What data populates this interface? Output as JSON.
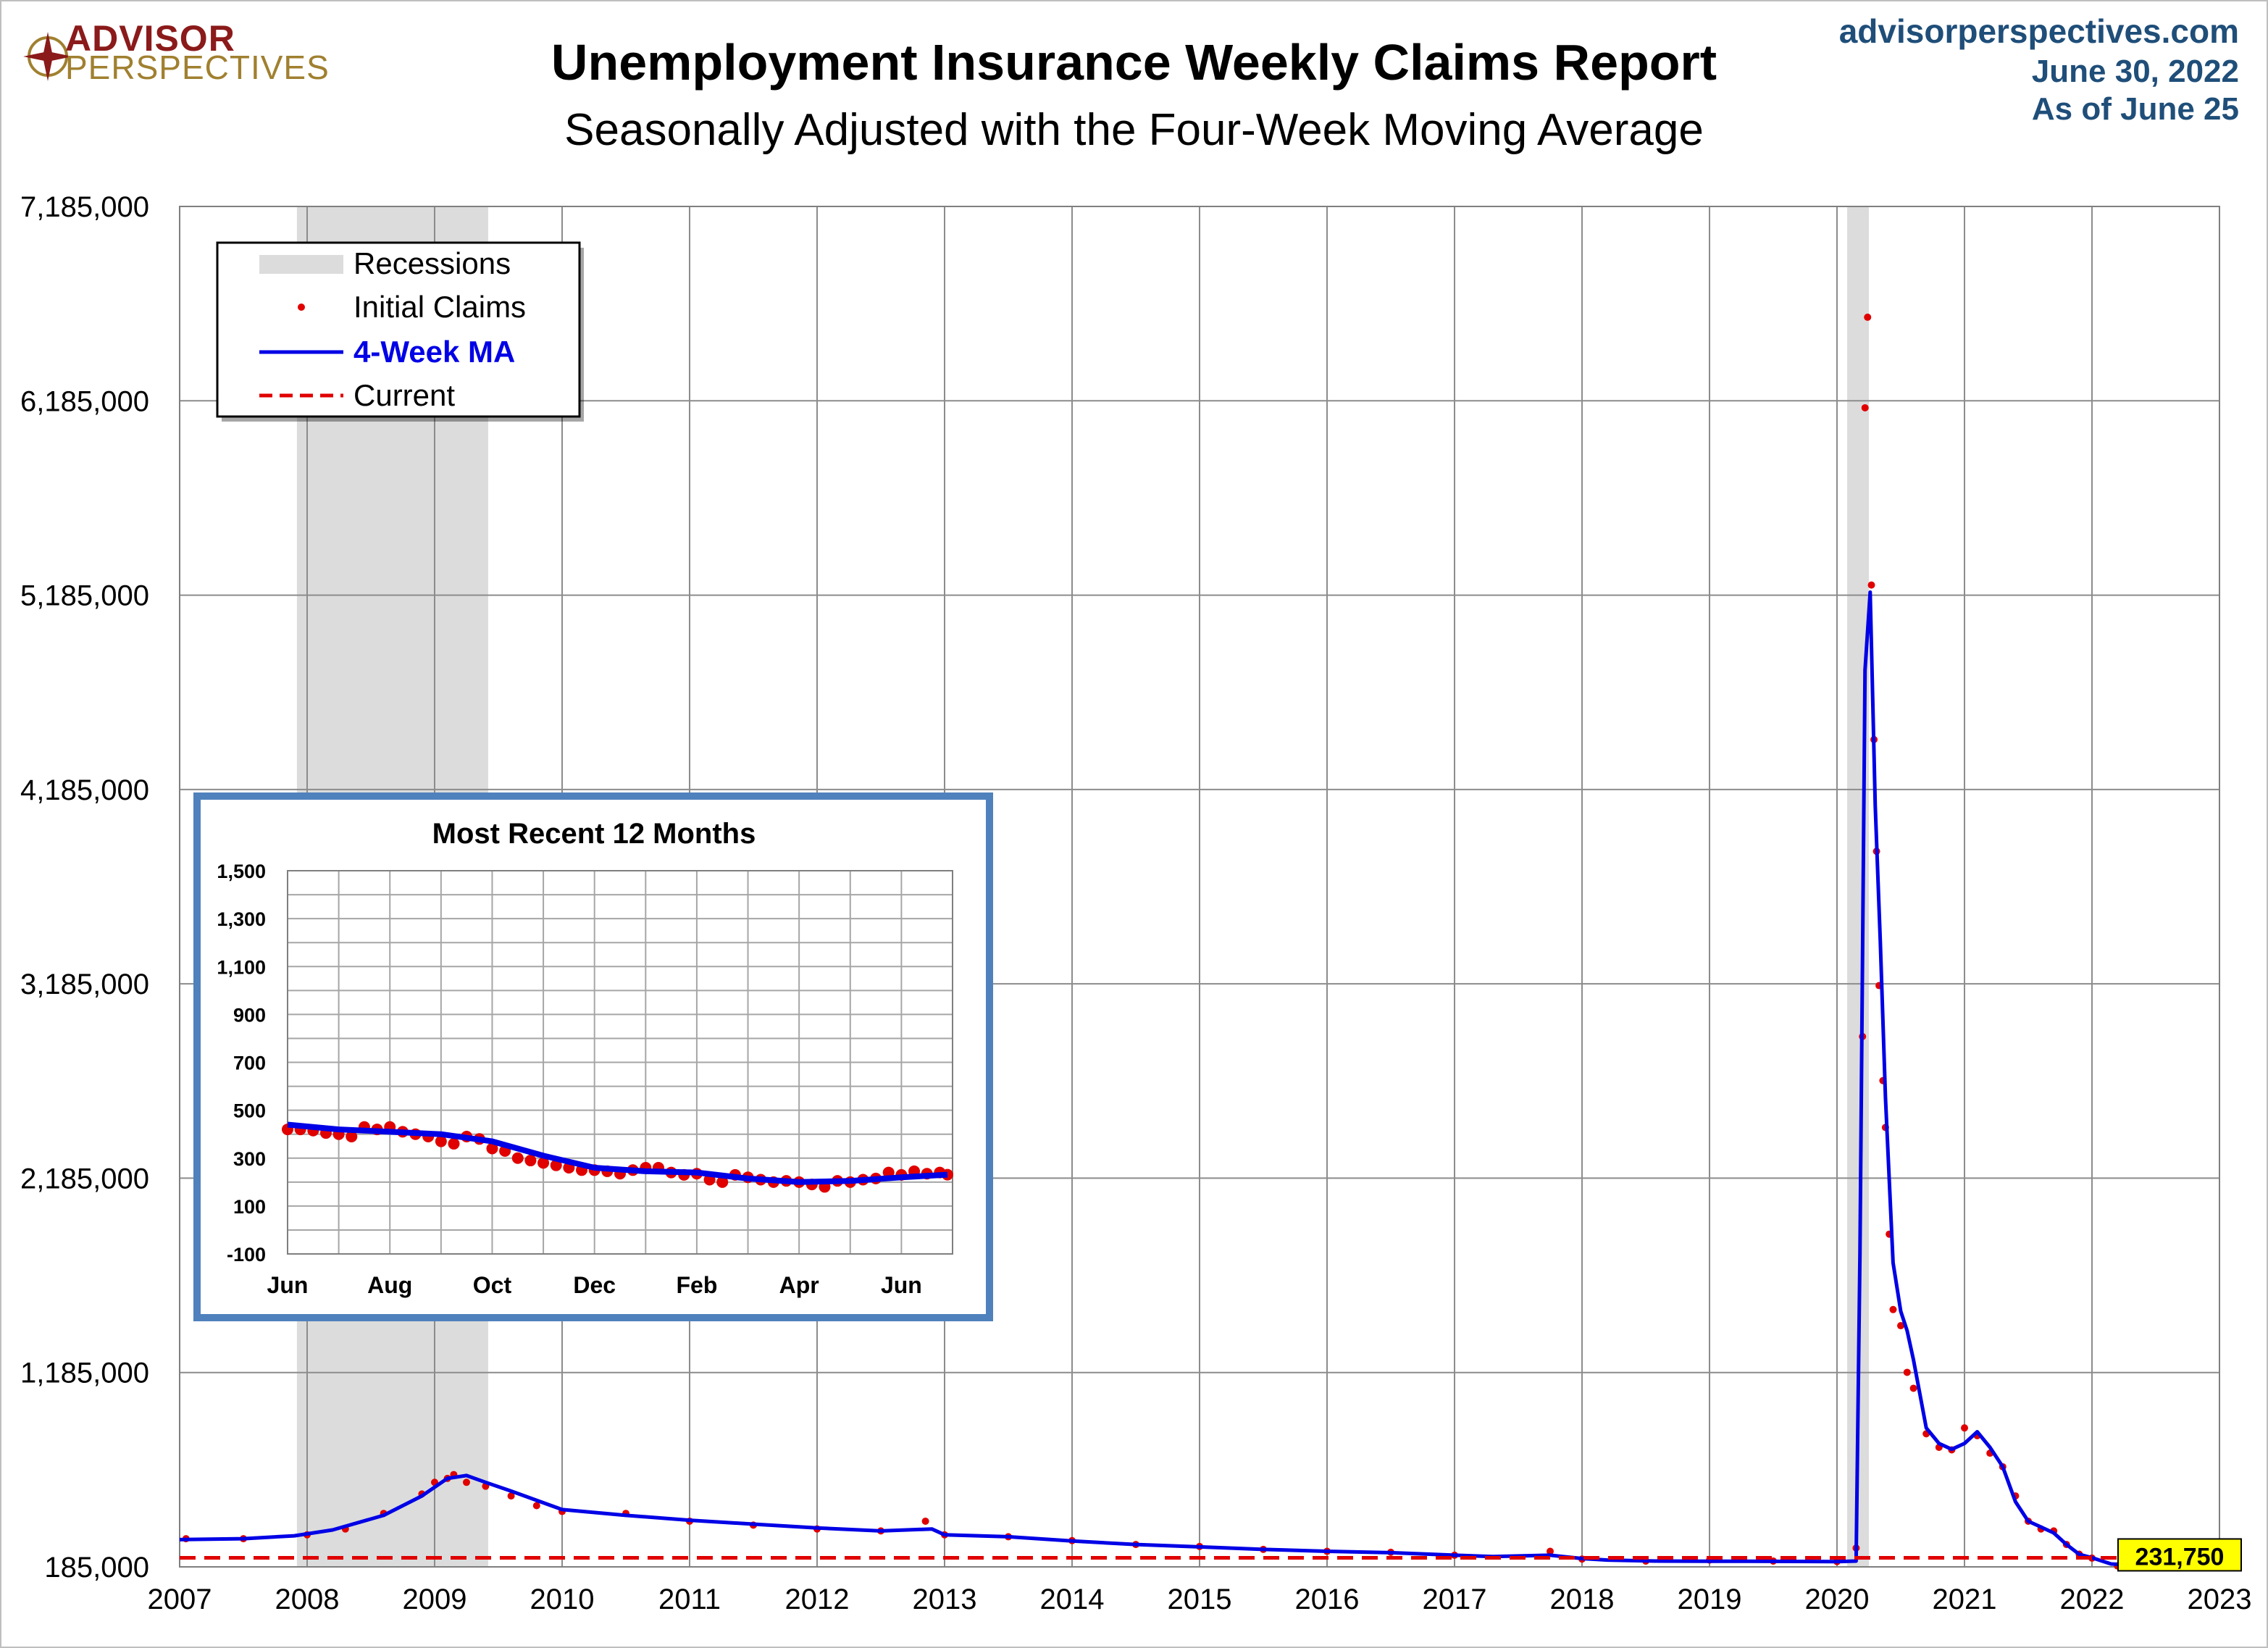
{
  "header": {
    "logo_top": "ADVISOR",
    "logo_bottom": "PERSPECTIVES",
    "title": "Unemployment Insurance Weekly Claims Report",
    "subtitle": "Seasonally Adjusted with the Four-Week Moving Average",
    "site": "advisorperspectives.com",
    "date": "June 30, 2022",
    "as_of": "As of June 25"
  },
  "colors": {
    "points": "#e00000",
    "ma_line": "#0000e6",
    "current_line": "#e00000",
    "recession": "#dcdcdc",
    "inset_border": "#4f81bd",
    "current_label_bg": "#ffff00"
  },
  "chart_data": [
    {
      "type": "line",
      "title": "Unemployment Insurance Weekly Claims Report",
      "subtitle": "Seasonally Adjusted with the Four-Week Moving Average",
      "xlim": [
        2007,
        2023
      ],
      "ylim": [
        185000,
        7185000
      ],
      "x_ticks": [
        "2007",
        "2008",
        "2009",
        "2010",
        "2011",
        "2012",
        "2013",
        "2014",
        "2015",
        "2016",
        "2017",
        "2018",
        "2019",
        "2020",
        "2021",
        "2022",
        "2023"
      ],
      "y_ticks": [
        "7,185,000",
        "6,185,000",
        "5,185,000",
        "4,185,000",
        "3,185,000",
        "2,185,000",
        "1,185,000",
        "185,000"
      ],
      "grid": true,
      "legend": {
        "placement": "top-left",
        "entries": [
          "Recessions",
          "Initial Claims",
          "4-Week MA",
          "Current"
        ]
      },
      "recessions": [
        [
          2007.92,
          2009.42
        ],
        [
          2020.08,
          2020.25
        ]
      ],
      "current": {
        "value": 231750,
        "label": "231,750"
      },
      "series": [
        {
          "name": "Initial Claims",
          "style": "points",
          "x": [
            2007.05,
            2007.5,
            2008.0,
            2008.3,
            2008.6,
            2008.9,
            2009.0,
            2009.1,
            2009.15,
            2009.25,
            2009.4,
            2009.6,
            2009.8,
            2010.0,
            2010.5,
            2011.0,
            2011.5,
            2012.0,
            2012.5,
            2012.85,
            2013.0,
            2013.5,
            2014.0,
            2014.5,
            2015.0,
            2015.5,
            2016.0,
            2016.5,
            2017.0,
            2017.75,
            2018.0,
            2018.5,
            2019.0,
            2019.5,
            2020.0,
            2020.15,
            2020.2,
            2020.22,
            2020.24,
            2020.27,
            2020.29,
            2020.31,
            2020.33,
            2020.36,
            2020.38,
            2020.41,
            2020.44,
            2020.5,
            2020.55,
            2020.6,
            2020.7,
            2020.8,
            2020.9,
            2021.0,
            2021.1,
            2021.2,
            2021.3,
            2021.4,
            2021.5,
            2021.6,
            2021.7,
            2021.8,
            2021.9,
            2022.0,
            2022.2,
            2022.4,
            2022.48
          ],
          "y": [
            330000,
            330000,
            350000,
            380000,
            460000,
            560000,
            620000,
            640000,
            660000,
            620000,
            600000,
            550000,
            500000,
            470000,
            460000,
            420000,
            400000,
            380000,
            370000,
            420000,
            350000,
            340000,
            320000,
            300000,
            290000,
            275000,
            265000,
            260000,
            245000,
            265000,
            225000,
            215000,
            220000,
            215000,
            212000,
            282000,
            2914000,
            6149000,
            6615000,
            5237000,
            4442000,
            3867000,
            3176000,
            2687000,
            2446000,
            1897000,
            1509000,
            1426000,
            1186000,
            1104000,
            870000,
            800000,
            787000,
            900000,
            860000,
            770000,
            700000,
            550000,
            420000,
            380000,
            370000,
            300000,
            250000,
            230000,
            190000,
            200000,
            231000
          ]
        },
        {
          "name": "4-Week MA",
          "style": "line",
          "x": [
            2007.0,
            2007.5,
            2007.9,
            2008.2,
            2008.6,
            2008.9,
            2009.1,
            2009.25,
            2009.4,
            2009.6,
            2010.0,
            2010.5,
            2011.0,
            2011.5,
            2012.0,
            2012.5,
            2012.9,
            2013.0,
            2013.5,
            2014.0,
            2014.5,
            2015.0,
            2015.5,
            2016.0,
            2016.5,
            2017.0,
            2017.3,
            2017.75,
            2018.0,
            2018.2,
            2018.6,
            2019.0,
            2019.3,
            2019.7,
            2020.0,
            2020.15,
            2020.18,
            2020.22,
            2020.26,
            2020.3,
            2020.34,
            2020.38,
            2020.44,
            2020.5,
            2020.55,
            2020.6,
            2020.7,
            2020.8,
            2020.9,
            2021.0,
            2021.1,
            2021.2,
            2021.3,
            2021.4,
            2021.5,
            2021.6,
            2021.7,
            2021.8,
            2021.9,
            2022.0,
            2022.15,
            2022.3,
            2022.48
          ],
          "y": [
            325000,
            330000,
            345000,
            375000,
            450000,
            550000,
            640000,
            655000,
            620000,
            575000,
            480000,
            450000,
            425000,
            405000,
            385000,
            370000,
            380000,
            350000,
            340000,
            318000,
            300000,
            288000,
            275000,
            265000,
            258000,
            245000,
            238000,
            245000,
            228000,
            220000,
            215000,
            214000,
            214000,
            213000,
            212000,
            215000,
            1800000,
            4800000,
            5200000,
            4100000,
            3400000,
            2600000,
            1750000,
            1500000,
            1400000,
            1250000,
            900000,
            820000,
            790000,
            820000,
            880000,
            800000,
            700000,
            520000,
            420000,
            390000,
            360000,
            300000,
            250000,
            232000,
            200000,
            195000,
            231750
          ]
        }
      ]
    },
    {
      "type": "line",
      "title": "Most Recent 12 Months",
      "x_ticks": [
        "Jun",
        "Aug",
        "Oct",
        "Dec",
        "Feb",
        "Apr",
        "Jun"
      ],
      "y_ticks": [
        "1,500",
        "1,300",
        "1,100",
        "900",
        "700",
        "500",
        "300",
        "100",
        "-100"
      ],
      "ylim": [
        -100,
        1500
      ],
      "grid": true,
      "series": [
        {
          "name": "Initial Claims",
          "style": "points",
          "x": [
            0,
            0.25,
            0.5,
            0.75,
            1.0,
            1.25,
            1.5,
            1.75,
            2.0,
            2.25,
            2.5,
            2.75,
            3.0,
            3.25,
            3.5,
            3.75,
            4.0,
            4.25,
            4.5,
            4.75,
            5.0,
            5.25,
            5.5,
            5.75,
            6.0,
            6.25,
            6.5,
            6.75,
            7.0,
            7.25,
            7.5,
            7.75,
            8.0,
            8.25,
            8.5,
            8.75,
            9.0,
            9.25,
            9.5,
            9.75,
            10.0,
            10.25,
            10.5,
            10.75,
            11.0,
            11.25,
            11.5,
            11.75,
            12.0,
            12.25,
            12.5,
            12.75,
            12.9
          ],
          "y": [
            420,
            420,
            415,
            405,
            400,
            390,
            430,
            420,
            430,
            410,
            400,
            390,
            370,
            360,
            390,
            380,
            340,
            330,
            300,
            290,
            280,
            270,
            260,
            250,
            250,
            245,
            235,
            250,
            260,
            260,
            240,
            230,
            235,
            210,
            200,
            230,
            220,
            210,
            200,
            205,
            200,
            190,
            180,
            205,
            200,
            210,
            215,
            240,
            230,
            245,
            235,
            240,
            231
          ]
        },
        {
          "name": "4-Week MA",
          "style": "line",
          "x": [
            0,
            1,
            2,
            3,
            4,
            5,
            6,
            7,
            8,
            9,
            10,
            11,
            12,
            12.9
          ],
          "y": [
            440,
            420,
            410,
            400,
            370,
            310,
            260,
            245,
            240,
            215,
            200,
            205,
            220,
            231
          ]
        }
      ]
    }
  ]
}
